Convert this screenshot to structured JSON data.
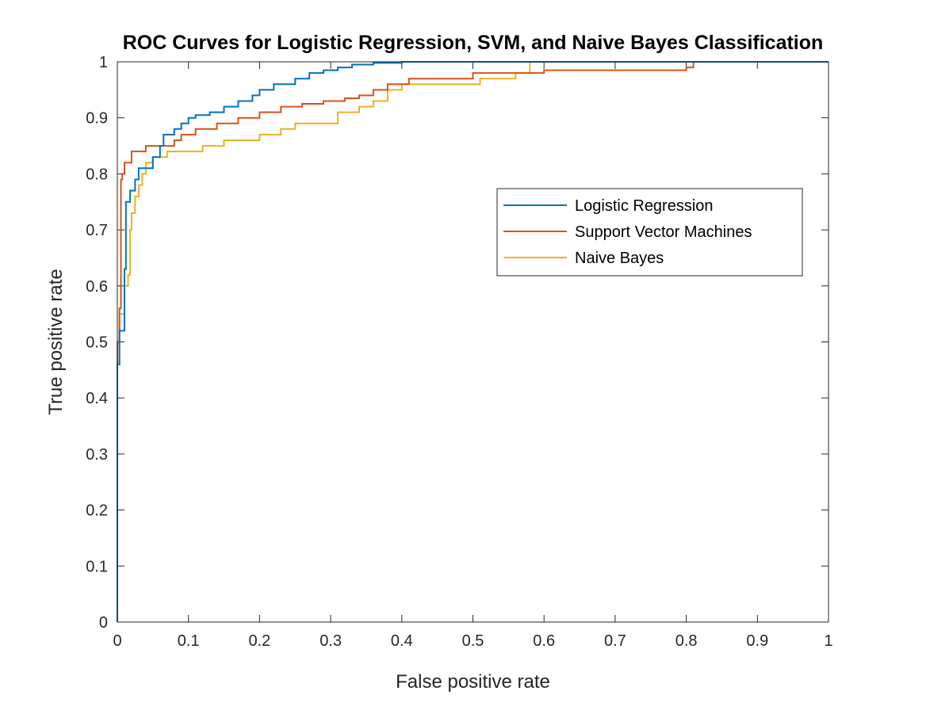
{
  "chart_data": {
    "type": "line",
    "title": "ROC Curves for Logistic Regression, SVM, and Naive Bayes Classification",
    "xlabel": "False positive rate",
    "ylabel": "True positive rate",
    "xlim": [
      0,
      1
    ],
    "ylim": [
      0,
      1
    ],
    "xticks": [
      "0",
      "0.1",
      "0.2",
      "0.3",
      "0.4",
      "0.5",
      "0.6",
      "0.7",
      "0.8",
      "0.9",
      "1"
    ],
    "yticks": [
      "0",
      "0.1",
      "0.2",
      "0.3",
      "0.4",
      "0.5",
      "0.6",
      "0.7",
      "0.8",
      "0.9",
      "1"
    ],
    "grid": false,
    "legend_position": "upper-right",
    "series": [
      {
        "name": "Logistic Regression",
        "color": "#0072BD",
        "x": [
          0,
          0,
          0.003,
          0.003,
          0.01,
          0.01,
          0.012,
          0.012,
          0.018,
          0.018,
          0.025,
          0.025,
          0.03,
          0.03,
          0.05,
          0.05,
          0.06,
          0.06,
          0.065,
          0.065,
          0.08,
          0.08,
          0.09,
          0.09,
          0.1,
          0.1,
          0.11,
          0.11,
          0.13,
          0.13,
          0.15,
          0.15,
          0.17,
          0.17,
          0.19,
          0.19,
          0.2,
          0.2,
          0.22,
          0.22,
          0.25,
          0.25,
          0.27,
          0.27,
          0.29,
          0.29,
          0.31,
          0.31,
          0.33,
          0.33,
          0.36,
          0.36,
          0.4,
          0.4,
          0.43,
          0.43,
          0.6,
          0.6,
          1
        ],
        "y": [
          0,
          0.46,
          0.46,
          0.52,
          0.52,
          0.63,
          0.63,
          0.75,
          0.75,
          0.77,
          0.77,
          0.79,
          0.79,
          0.81,
          0.81,
          0.83,
          0.83,
          0.85,
          0.85,
          0.87,
          0.87,
          0.88,
          0.88,
          0.89,
          0.89,
          0.9,
          0.9,
          0.905,
          0.905,
          0.91,
          0.91,
          0.92,
          0.92,
          0.93,
          0.93,
          0.94,
          0.94,
          0.95,
          0.95,
          0.96,
          0.96,
          0.97,
          0.97,
          0.98,
          0.98,
          0.985,
          0.985,
          0.99,
          0.99,
          0.995,
          0.995,
          0.998,
          0.998,
          1,
          1,
          1,
          1,
          1,
          1
        ]
      },
      {
        "name": "Support Vector Machines",
        "color": "#D95319",
        "x": [
          0,
          0,
          0.003,
          0.003,
          0.005,
          0.005,
          0.007,
          0.007,
          0.01,
          0.01,
          0.02,
          0.02,
          0.04,
          0.04,
          0.08,
          0.08,
          0.09,
          0.09,
          0.11,
          0.11,
          0.14,
          0.14,
          0.17,
          0.17,
          0.2,
          0.2,
          0.23,
          0.23,
          0.26,
          0.26,
          0.29,
          0.29,
          0.32,
          0.32,
          0.34,
          0.34,
          0.36,
          0.36,
          0.38,
          0.38,
          0.41,
          0.41,
          0.5,
          0.5,
          0.6,
          0.6,
          0.8,
          0.8,
          0.81,
          0.81,
          1
        ],
        "y": [
          0,
          0.5,
          0.5,
          0.56,
          0.56,
          0.79,
          0.79,
          0.8,
          0.8,
          0.82,
          0.82,
          0.84,
          0.84,
          0.85,
          0.85,
          0.86,
          0.86,
          0.87,
          0.87,
          0.88,
          0.88,
          0.89,
          0.89,
          0.9,
          0.9,
          0.91,
          0.91,
          0.92,
          0.92,
          0.925,
          0.925,
          0.93,
          0.93,
          0.935,
          0.935,
          0.94,
          0.94,
          0.95,
          0.95,
          0.96,
          0.96,
          0.97,
          0.97,
          0.98,
          0.98,
          0.985,
          0.985,
          0.99,
          0.99,
          1,
          1
        ]
      },
      {
        "name": "Naive Bayes",
        "color": "#EDB120",
        "x": [
          0,
          0,
          0.003,
          0.003,
          0.01,
          0.01,
          0.015,
          0.015,
          0.018,
          0.018,
          0.02,
          0.02,
          0.025,
          0.025,
          0.03,
          0.03,
          0.035,
          0.035,
          0.04,
          0.04,
          0.05,
          0.05,
          0.07,
          0.07,
          0.12,
          0.12,
          0.15,
          0.15,
          0.2,
          0.2,
          0.23,
          0.23,
          0.25,
          0.25,
          0.31,
          0.31,
          0.34,
          0.34,
          0.36,
          0.36,
          0.38,
          0.38,
          0.4,
          0.4,
          0.51,
          0.51,
          0.56,
          0.56,
          0.58,
          0.58,
          1
        ],
        "y": [
          0,
          0.46,
          0.46,
          0.55,
          0.55,
          0.6,
          0.6,
          0.62,
          0.62,
          0.7,
          0.7,
          0.73,
          0.73,
          0.76,
          0.76,
          0.78,
          0.78,
          0.8,
          0.8,
          0.82,
          0.82,
          0.83,
          0.83,
          0.84,
          0.84,
          0.85,
          0.85,
          0.86,
          0.86,
          0.87,
          0.87,
          0.88,
          0.88,
          0.89,
          0.89,
          0.91,
          0.91,
          0.92,
          0.92,
          0.93,
          0.93,
          0.95,
          0.95,
          0.96,
          0.96,
          0.97,
          0.97,
          0.98,
          0.98,
          1,
          1
        ]
      }
    ]
  }
}
